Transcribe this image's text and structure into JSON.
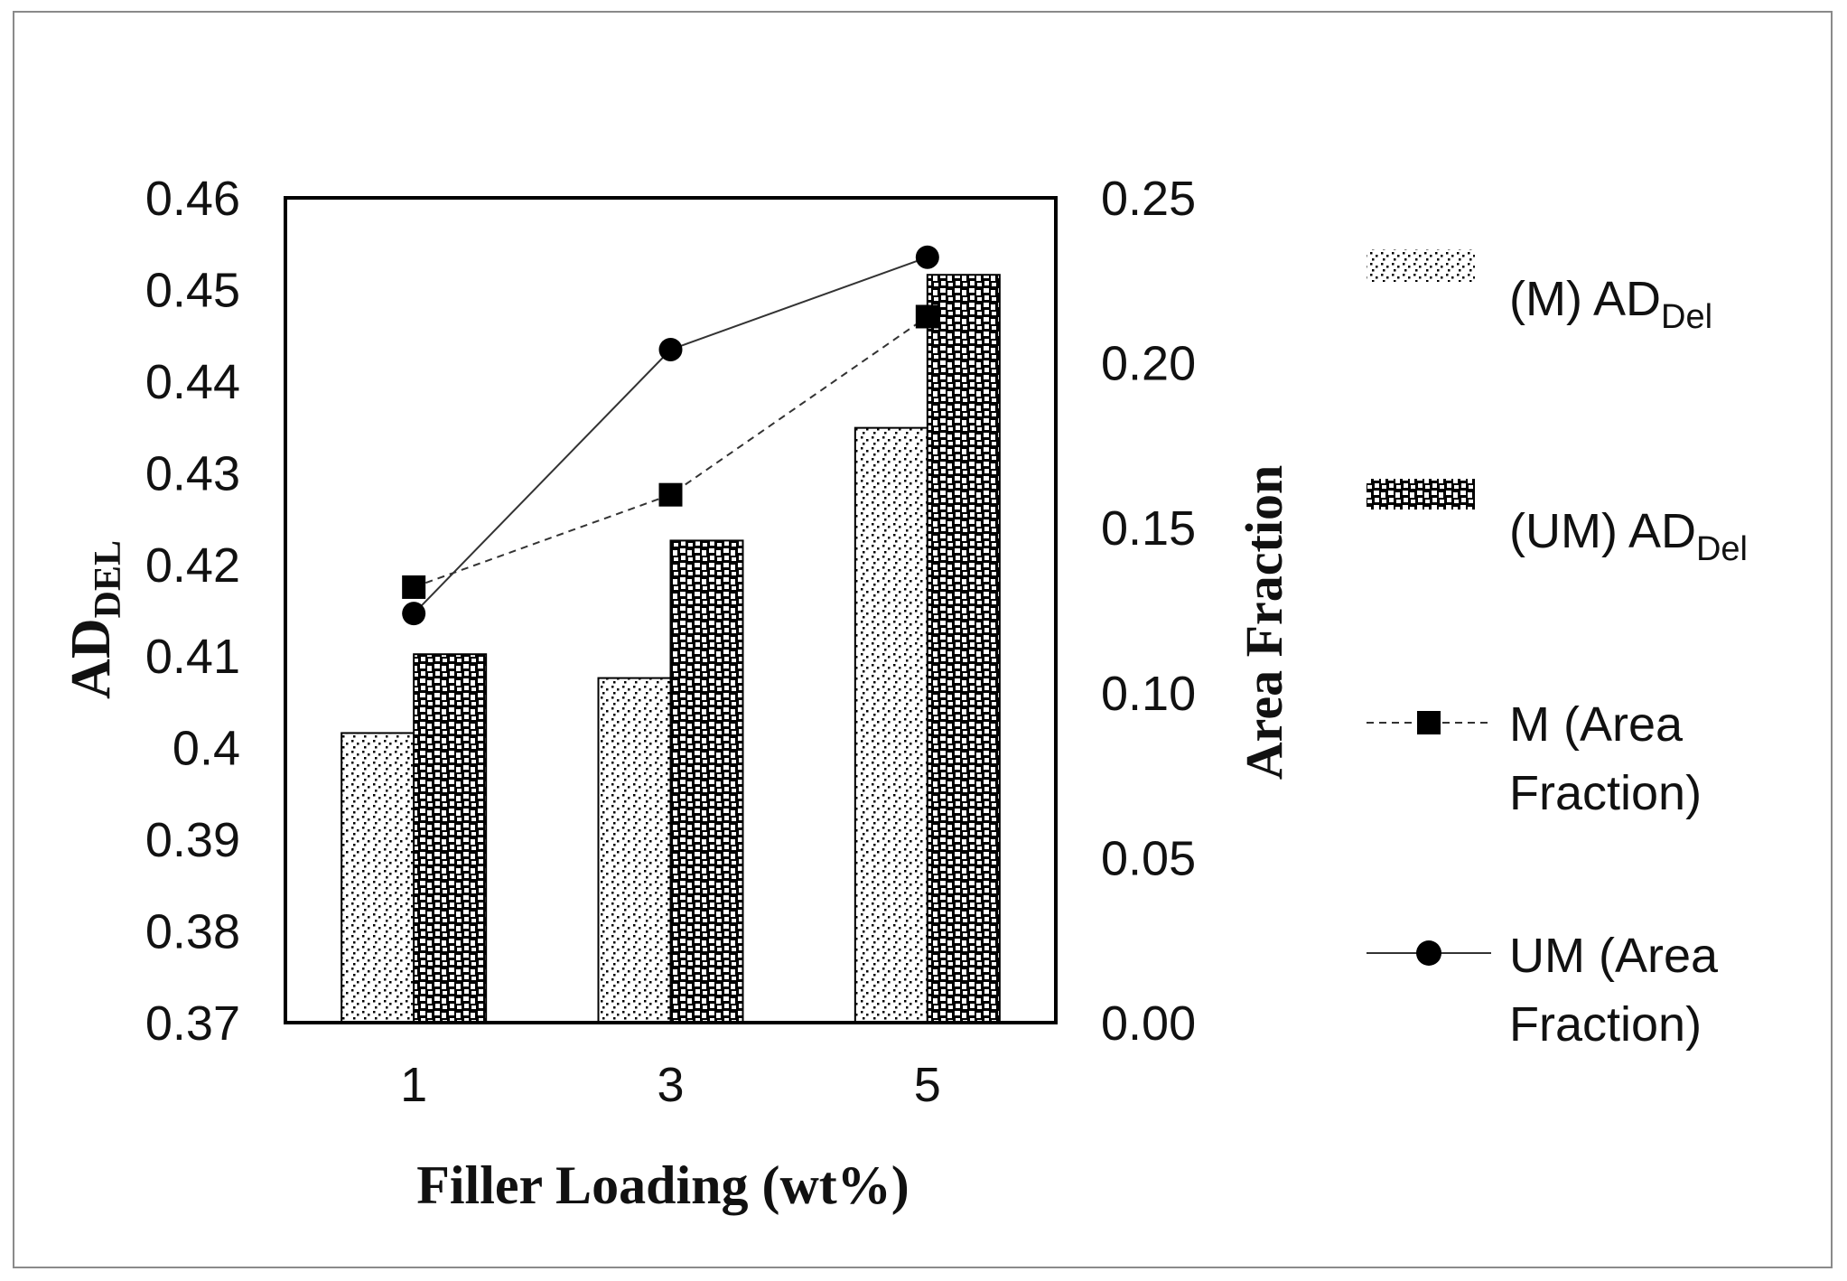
{
  "chart_data": {
    "type": "bar",
    "categories": [
      "1",
      "3",
      "5"
    ],
    "xlabel": "Filler Loading (wt%)",
    "ylabel": {
      "main": "AD",
      "sub": "DEL"
    },
    "y2label": "Area Fraction",
    "ylim": [
      0.37,
      0.46
    ],
    "y2lim": [
      0.0,
      0.25
    ],
    "y_ticks": [
      "0.37",
      "0.38",
      "0.39",
      "0.4",
      "0.41",
      "0.42",
      "0.43",
      "0.44",
      "0.45",
      "0.46"
    ],
    "y2_ticks": [
      "0.00",
      "0.05",
      "0.10",
      "0.15",
      "0.20",
      "0.25"
    ],
    "bar_series": [
      {
        "name": "(M) AD",
        "name_sub": "Del",
        "values": [
          0.4016,
          0.4076,
          0.4349
        ],
        "pattern": "fine-dots"
      },
      {
        "name": "(UM) AD",
        "name_sub": "Del",
        "values": [
          0.4102,
          0.4226,
          0.4516
        ],
        "pattern": "coarse-squares"
      }
    ],
    "line_series": [
      {
        "name_line1": "M (Area",
        "name_line2": "Fraction)",
        "values": [
          0.132,
          0.16,
          0.214
        ],
        "marker": "square",
        "style": "dashed"
      },
      {
        "name_line1": "UM (Area",
        "name_line2": "Fraction)",
        "values": [
          0.124,
          0.204,
          0.232
        ],
        "marker": "circle",
        "style": "solid"
      }
    ],
    "grid": false,
    "legend_position": "right"
  }
}
